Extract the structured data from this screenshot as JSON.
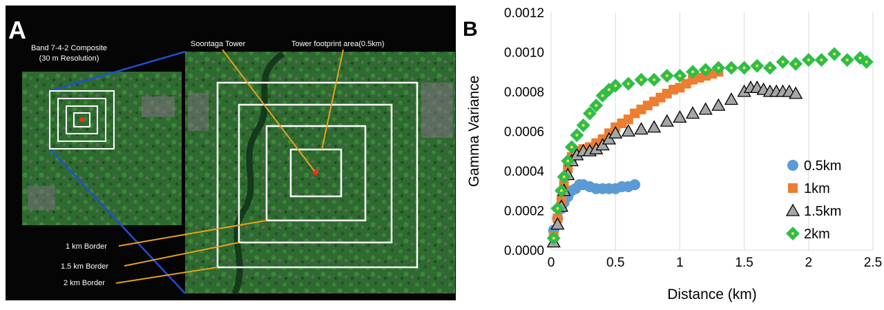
{
  "panel_a": {
    "letter": "A",
    "composite_line1": "Band 7-4-2 Composite",
    "composite_line2": "(30 m Resolution)",
    "tower_label": "Soontaga Tower",
    "footprint_label": "Tower footprint area(0.5km)",
    "border_1km": "1 km Border",
    "border_15km": "1.5 km Border",
    "border_2km": "2 km Border",
    "colors": {
      "background": "#050505",
      "vegetation": "#2f6a30",
      "square": "#ffffff",
      "leader": "#e6a21b",
      "zoom_line": "#1e4fd6",
      "tower": "#ff2a1a"
    }
  },
  "panel_b": {
    "letter": "B"
  },
  "chart_data": {
    "type": "scatter",
    "xlabel": "Distance (km)",
    "ylabel": "Gamma Variance",
    "xlim": [
      0,
      2.5
    ],
    "ylim": [
      0,
      0.0012
    ],
    "xticks": [
      0,
      0.5,
      1,
      1.5,
      2,
      2.5
    ],
    "xtick_labels": [
      "0",
      "0.5",
      "1",
      "1.5",
      "2",
      "2.5"
    ],
    "yticks": [
      0,
      0.0002,
      0.0004,
      0.0006,
      0.0008,
      0.001,
      0.0012
    ],
    "ytick_labels": [
      "0.0000",
      "0.0002",
      "0.0004",
      "0.0006",
      "0.0008",
      "0.0010",
      "0.0012"
    ],
    "grid": "vertical",
    "legend_position": "bottom-right",
    "series": [
      {
        "name": "0.5km",
        "marker": "circle",
        "color": "#5b9bd5",
        "x": [
          0.02,
          0.05,
          0.08,
          0.1,
          0.13,
          0.16,
          0.19,
          0.22,
          0.25,
          0.3,
          0.35,
          0.4,
          0.45,
          0.5,
          0.55,
          0.6,
          0.65
        ],
        "y": [
          0.0001,
          0.00016,
          0.00021,
          0.00024,
          0.00027,
          0.0003,
          0.00031,
          0.00033,
          0.00033,
          0.00032,
          0.00031,
          0.00031,
          0.00031,
          0.00031,
          0.00032,
          0.00032,
          0.00033
        ]
      },
      {
        "name": "1km",
        "marker": "square",
        "color": "#ed7d31",
        "x": [
          0.02,
          0.05,
          0.08,
          0.1,
          0.13,
          0.16,
          0.2,
          0.25,
          0.3,
          0.35,
          0.4,
          0.45,
          0.5,
          0.55,
          0.6,
          0.65,
          0.7,
          0.75,
          0.8,
          0.85,
          0.9,
          0.95,
          1.0,
          1.05,
          1.1,
          1.15,
          1.2,
          1.25,
          1.3
        ],
        "y": [
          7e-05,
          0.00016,
          0.00025,
          0.00033,
          0.00041,
          0.00047,
          0.0005,
          0.00051,
          0.00052,
          0.00054,
          0.00056,
          0.00059,
          0.00062,
          0.00064,
          0.00066,
          0.00069,
          0.00071,
          0.00073,
          0.00075,
          0.00077,
          0.00079,
          0.00081,
          0.00082,
          0.00084,
          0.00086,
          0.00087,
          0.00088,
          0.00089,
          0.0009
        ]
      },
      {
        "name": "1.5km",
        "marker": "triangle",
        "color": "#a6a6a6",
        "x": [
          0.02,
          0.05,
          0.08,
          0.1,
          0.13,
          0.16,
          0.2,
          0.25,
          0.3,
          0.35,
          0.4,
          0.45,
          0.5,
          0.6,
          0.7,
          0.8,
          0.9,
          1.0,
          1.1,
          1.2,
          1.3,
          1.4,
          1.5,
          1.55,
          1.6,
          1.65,
          1.7,
          1.75,
          1.8,
          1.85,
          1.9
        ],
        "y": [
          4e-05,
          0.00013,
          0.00022,
          0.0003,
          0.00038,
          0.00045,
          0.00048,
          0.0005,
          0.0005,
          0.00051,
          0.00053,
          0.00056,
          0.00059,
          0.0006,
          0.00061,
          0.00062,
          0.00065,
          0.00067,
          0.00069,
          0.00071,
          0.00073,
          0.00076,
          0.0008,
          0.00082,
          0.00082,
          0.00081,
          0.0008,
          0.0008,
          0.0008,
          0.0008,
          0.00079
        ]
      },
      {
        "name": "2km",
        "marker": "diamond",
        "color": "#2ebd4a",
        "x": [
          0.02,
          0.05,
          0.08,
          0.1,
          0.13,
          0.16,
          0.2,
          0.25,
          0.3,
          0.35,
          0.4,
          0.45,
          0.5,
          0.6,
          0.7,
          0.8,
          0.9,
          1.0,
          1.1,
          1.2,
          1.3,
          1.4,
          1.5,
          1.6,
          1.7,
          1.8,
          1.9,
          2.0,
          2.1,
          2.2,
          2.3,
          2.4,
          2.45
        ],
        "y": [
          6e-05,
          0.00021,
          0.0003,
          0.00037,
          0.00045,
          0.00052,
          0.00058,
          0.00063,
          0.00069,
          0.00073,
          0.00078,
          0.00081,
          0.00083,
          0.00084,
          0.00086,
          0.00086,
          0.00088,
          0.00088,
          0.0009,
          0.00091,
          0.00092,
          0.00092,
          0.00092,
          0.00093,
          0.00092,
          0.00095,
          0.00094,
          0.00096,
          0.00096,
          0.00099,
          0.00096,
          0.00097,
          0.00095
        ]
      }
    ]
  }
}
